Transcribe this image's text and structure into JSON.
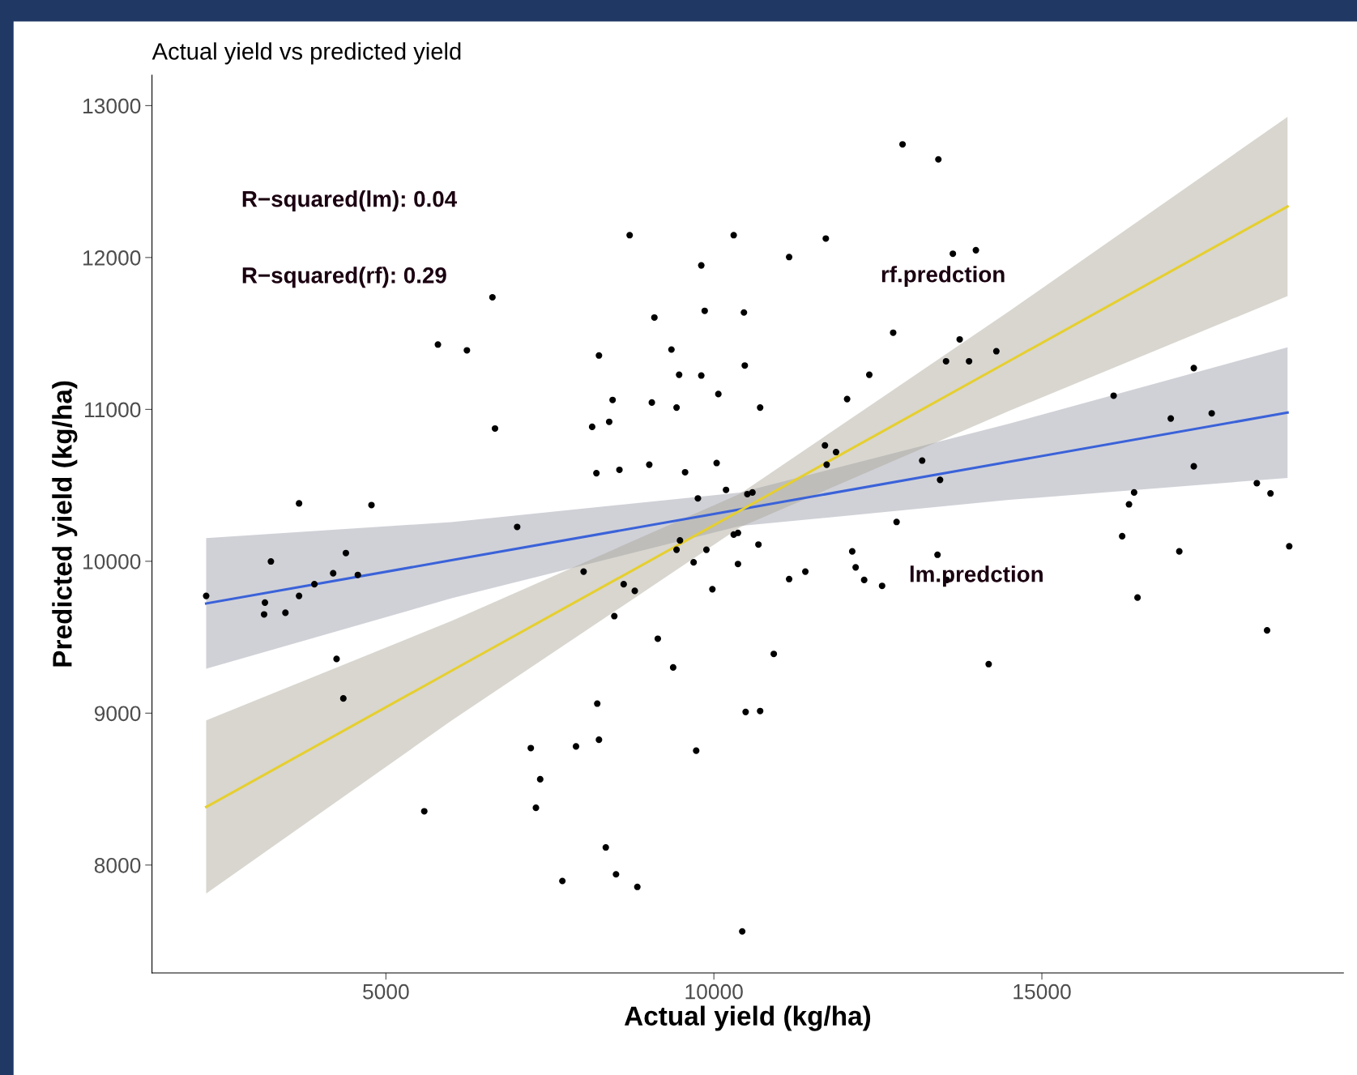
{
  "chart_data": {
    "type": "scatter",
    "title": "Actual yield vs predicted yield",
    "xlabel": "Actual yield (kg/ha)",
    "ylabel": "Predicted yield (kg/ha)",
    "xlim": [
      1434,
      19597
    ],
    "ylim": [
      7290,
      13200
    ],
    "xticks": [
      5000,
      10000,
      15000
    ],
    "yticks": [
      8000,
      9000,
      10000,
      11000,
      12000,
      13000
    ],
    "grid": false,
    "legend": false,
    "annotations": [
      "R−squared(lm): 0.04",
      "R−squared(rf): 0.29",
      "rf.predction",
      "lm.predction"
    ],
    "series": [
      {
        "marker": "circle",
        "color": "#000000",
        "x": [
          2260,
          3156,
          3143,
          3247,
          3468,
          3676,
          3676,
          3910,
          4196,
          4248,
          4390,
          4351,
          4572,
          4780,
          5585,
          5793,
          6235,
          6624,
          6663,
          7001,
          7209,
          7287,
          7352,
          7690,
          7898,
          8014,
          8144,
          8209,
          8248,
          8222,
          8248,
          8352,
          8404,
          8456,
          8482,
          8508,
          8560,
          8625,
          8716,
          8794,
          8833,
          9015,
          9054,
          9093,
          9145,
          9353,
          9379,
          9431,
          9431,
          9470,
          9483,
          9561,
          9691,
          9730,
          9756,
          9808,
          9808,
          9860,
          9886,
          9977,
          10042,
          10068,
          10185,
          10302,
          10302,
          10367,
          10367,
          10432,
          10458,
          10471,
          10484,
          10510,
          10588,
          10679,
          10705,
          10705,
          10913,
          11147,
          11147,
          11394,
          11706,
          11693,
          11719,
          11862,
          12031,
          12109,
          12161,
          12291,
          12369,
          12564,
          12733,
          12785,
          12876,
          13175,
          13409,
          13422,
          13448,
          13539,
          13552,
          13643,
          13747,
          13890,
          13994,
          14189,
          14306,
          16094,
          16224,
          16328,
          16406,
          16458,
          16965,
          17095,
          17316,
          17316,
          17589,
          18277,
          18433,
          18485,
          18771
        ],
        "values": [
          9772,
          9728,
          9650,
          9999,
          9661,
          10381,
          9772,
          9849,
          9921,
          9357,
          10054,
          9097,
          9910,
          10370,
          8354,
          11427,
          11389,
          11738,
          10874,
          10226,
          8770,
          8377,
          8565,
          7895,
          8781,
          9932,
          10885,
          10580,
          11355,
          9063,
          8825,
          8116,
          10918,
          11062,
          9639,
          7939,
          10602,
          9849,
          12147,
          9805,
          7856,
          10636,
          11045,
          11605,
          9490,
          11394,
          9301,
          11012,
          10076,
          11228,
          10137,
          10586,
          9993,
          8753,
          10414,
          11223,
          11948,
          11649,
          10076,
          9816,
          10647,
          11101,
          10470,
          12147,
          10176,
          10187,
          9982,
          7563,
          11638,
          11289,
          9008,
          10442,
          10453,
          10110,
          11012,
          9014,
          9390,
          12003,
          9883,
          9932,
          12125,
          10763,
          10636,
          10719,
          11068,
          10065,
          9960,
          9877,
          11228,
          9838,
          11505,
          10259,
          12745,
          10663,
          10043,
          12646,
          10536,
          11317,
          9877,
          12025,
          11461,
          11317,
          12048,
          9323,
          11383,
          11090,
          10165,
          10375,
          10453,
          9761,
          10940,
          10065,
          11272,
          10625,
          10974,
          10514,
          9545,
          10447,
          10099
        ]
      },
      {
        "type": "line",
        "marker": "none",
        "color": "#3a62d9",
        "x": [
          2260,
          6000,
          10400,
          14500,
          18745
        ],
        "values": [
          9722,
          10007,
          10342,
          10655,
          10979
        ],
        "lower": [
          9292,
          9756,
          10232,
          10404,
          10549
        ],
        "upper": [
          10152,
          10258,
          10452,
          10906,
          11409
        ]
      },
      {
        "type": "line",
        "marker": "none",
        "color": "#e6cf2e",
        "x": [
          2260,
          6000,
          10400,
          14500,
          18745
        ],
        "values": [
          8382,
          9279,
          10334,
          11318,
          12336
        ],
        "lower": [
          7812,
          8951,
          10224,
          10990,
          11746
        ],
        "upper": [
          8952,
          9607,
          10444,
          11646,
          12926
        ]
      }
    ]
  }
}
